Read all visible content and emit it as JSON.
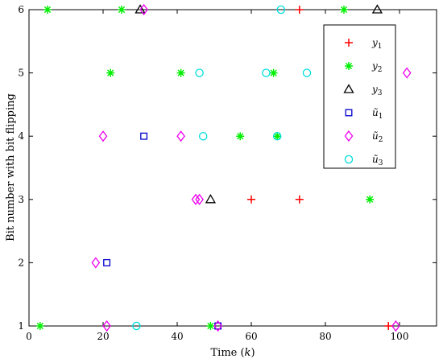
{
  "chart_data": {
    "type": "scatter",
    "xlabel": "Time (k)",
    "ylabel": "Bit number with bit flipping",
    "xlim": [
      0,
      110
    ],
    "ylim": [
      1,
      6
    ],
    "x_ticks": [
      "0",
      "20",
      "40",
      "60",
      "80",
      "100"
    ],
    "y_ticks": [
      "1",
      "2",
      "3",
      "4",
      "5",
      "6"
    ],
    "grid": false,
    "legend_position": "top-right",
    "series": [
      {
        "name": "y1",
        "marker": "plus",
        "color": "#ff0000",
        "points": [
          [
            73,
            6
          ],
          [
            60,
            3
          ],
          [
            73,
            3
          ],
          [
            97,
            1
          ]
        ]
      },
      {
        "name": "y2",
        "marker": "star",
        "color": "#00ee00",
        "points": [
          [
            5,
            6
          ],
          [
            25,
            6
          ],
          [
            85,
            6
          ],
          [
            22,
            5
          ],
          [
            41,
            5
          ],
          [
            66,
            5
          ],
          [
            57,
            4
          ],
          [
            67,
            4
          ],
          [
            92,
            3
          ],
          [
            3,
            1
          ],
          [
            49,
            1
          ]
        ]
      },
      {
        "name": "y3",
        "marker": "triangle",
        "color": "#000000",
        "points": [
          [
            30,
            6
          ],
          [
            94,
            6
          ],
          [
            49,
            3
          ]
        ]
      },
      {
        "name": "ũ1",
        "marker": "square",
        "color": "#0000cc",
        "points": [
          [
            31,
            4
          ],
          [
            21,
            2
          ],
          [
            51,
            1
          ]
        ]
      },
      {
        "name": "ũ2",
        "marker": "diamond",
        "color": "#ee00ee",
        "points": [
          [
            31,
            6
          ],
          [
            102,
            5
          ],
          [
            20,
            4
          ],
          [
            41,
            4
          ],
          [
            45,
            3
          ],
          [
            46,
            3
          ],
          [
            18,
            2
          ],
          [
            21,
            1
          ],
          [
            51,
            1
          ],
          [
            99,
            1
          ]
        ]
      },
      {
        "name": "ũ3",
        "marker": "circle",
        "color": "#00dddd",
        "points": [
          [
            68,
            6
          ],
          [
            46,
            5
          ],
          [
            64,
            5
          ],
          [
            75,
            5
          ],
          [
            47,
            4
          ],
          [
            67,
            4
          ],
          [
            29,
            1
          ]
        ]
      }
    ]
  }
}
